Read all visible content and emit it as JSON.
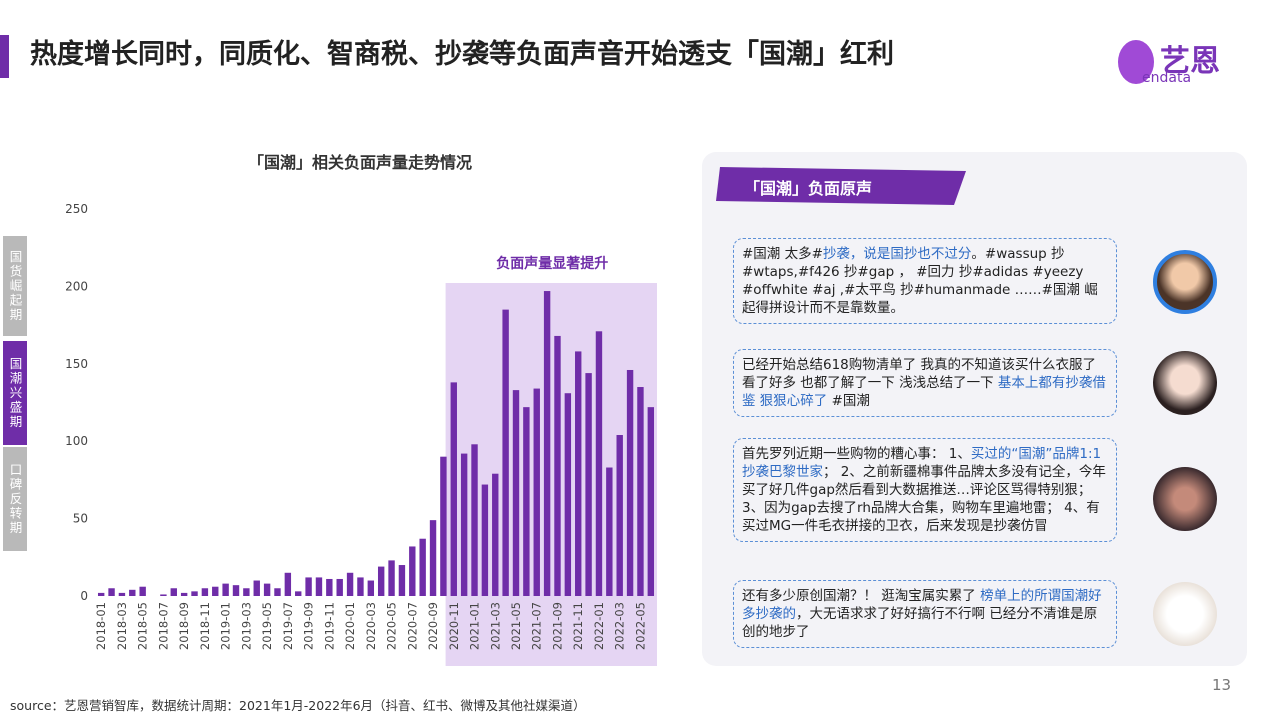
{
  "title": "热度增长同时，同质化、智商税、抄袭等负面声音开始透支「国潮」红利",
  "logo": {
    "name": "艺恩",
    "sub": "endata"
  },
  "phases": [
    {
      "label": "国货崛起期",
      "active": false
    },
    {
      "label": "国潮兴盛期",
      "active": true
    },
    {
      "label": "口碑反转期",
      "active": false
    }
  ],
  "chart_data": {
    "type": "bar",
    "title": "「国潮」相关负面声量走势情况",
    "color": "#6f2da8",
    "categories": [
      "2018-01",
      null,
      "2018-03",
      null,
      "2018-05",
      null,
      "2018-07",
      null,
      "2018-09",
      null,
      "2018-11",
      null,
      "2019-01",
      null,
      "2019-03",
      null,
      "2019-05",
      null,
      "2019-07",
      null,
      "2019-09",
      null,
      "2019-11",
      null,
      "2020-01",
      null,
      "2020-03",
      null,
      "2020-05",
      null,
      "2020-07",
      null,
      "2020-09",
      null,
      "2020-11",
      null,
      "2021-01",
      null,
      "2021-03",
      null,
      "2021-05",
      null,
      "2021-07",
      null,
      "2021-09",
      null,
      "2021-11",
      null,
      "2022-01",
      null,
      "2022-03",
      null,
      "2022-05",
      null
    ],
    "values": [
      2,
      5,
      2,
      4,
      6,
      0,
      1,
      5,
      2,
      3,
      5,
      6,
      8,
      7,
      5,
      10,
      8,
      5,
      15,
      3,
      12,
      12,
      11,
      11,
      15,
      12,
      10,
      19,
      23,
      20,
      32,
      37,
      49,
      90,
      138,
      92,
      98,
      72,
      79,
      185,
      133,
      122,
      134,
      197,
      168,
      131,
      158,
      144,
      171,
      83,
      104,
      146,
      135,
      122
    ],
    "ylim": [
      0,
      250
    ],
    "yticks": [
      0,
      50,
      100,
      150,
      200,
      250
    ],
    "highlight": {
      "label": "负面声量显著提升",
      "start": "2020-11",
      "color": "#e5d5f3"
    }
  },
  "panel": {
    "title": "「国潮」负面原声",
    "quotes": [
      {
        "segments": [
          {
            "text": "#国潮 太多#",
            "highlight": false
          },
          {
            "text": "抄袭，说是国抄也不过分",
            "highlight": true
          },
          {
            "text": "。#wassup 抄 #wtaps,#f426 抄#gap ， #回力 抄#adidas #yeezy #offwhite #aj ,#太平鸟 抄#humanmade ……#国潮 崛起得拼设计而不是靠数量。",
            "highlight": false
          }
        ]
      },
      {
        "segments": [
          {
            "text": "已经开始总结618购物清单了 我真的不知道该买什么衣服了 看了好多 也都了解了一下 浅浅总结了一下 ",
            "highlight": false
          },
          {
            "text": "基本上都有抄袭借鉴 狠狠心碎了",
            "highlight": true
          },
          {
            "text": " #国潮",
            "highlight": false
          }
        ]
      },
      {
        "segments": [
          {
            "text": "首先罗列近期一些购物的糟心事： 1、",
            "highlight": false
          },
          {
            "text": "买过的“国潮”品牌1:1抄袭巴黎世家",
            "highlight": true
          },
          {
            "text": "； 2、之前新疆棉事件品牌太多没有记全，今年买了好几件gap然后看到大数据推送…评论区骂得特别狠； 3、因为gap去搜了rh品牌大合集，购物车里遍地雷； 4、有买过MG一件毛衣拼接的卫衣，后来发现是抄袭仿冒",
            "highlight": false
          }
        ]
      },
      {
        "segments": [
          {
            "text": "还有多少原创国潮？！ 逛淘宝属实累了 ",
            "highlight": false
          },
          {
            "text": "榜单上的所谓国潮好多抄袭的",
            "highlight": true
          },
          {
            "text": "，大无语求求了好好搞行不行啊 已经分不清谁是原创的地步了",
            "highlight": false
          }
        ]
      }
    ]
  },
  "source": "source：艺恩营销智库，数据统计周期：2021年1月-2022年6月（抖音、红书、微博及其他社媒渠道）",
  "page_number": "13"
}
